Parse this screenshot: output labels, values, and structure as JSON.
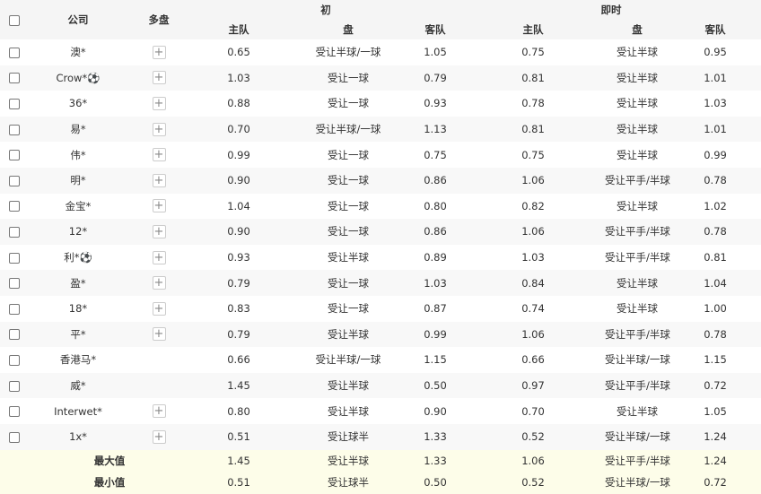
{
  "header": {
    "company": "公司",
    "multi": "多盘",
    "initial": "初",
    "live": "即时",
    "home": "主队",
    "line": "盘",
    "away": "客队"
  },
  "rows": [
    {
      "company": "澳*",
      "multi": true,
      "ih": "0.65",
      "il": "受让半球/一球",
      "ia": "1.05",
      "lh": "0.75",
      "ll": "受让半球",
      "la": "0.95"
    },
    {
      "company": "Crow*⚽",
      "multi": true,
      "ih": "1.03",
      "il": "受让一球",
      "ia": "0.79",
      "lh": "0.81",
      "ll": "受让半球",
      "la": "1.01"
    },
    {
      "company": "36*",
      "multi": true,
      "ih": "0.88",
      "il": "受让一球",
      "ia": "0.93",
      "lh": "0.78",
      "ll": "受让半球",
      "la": "1.03"
    },
    {
      "company": "易*",
      "multi": true,
      "ih": "0.70",
      "il": "受让半球/一球",
      "ia": "1.13",
      "lh": "0.81",
      "ll": "受让半球",
      "la": "1.01"
    },
    {
      "company": "伟*",
      "multi": true,
      "ih": "0.99",
      "il": "受让一球",
      "ia": "0.75",
      "lh": "0.75",
      "ll": "受让半球",
      "la": "0.99"
    },
    {
      "company": "明*",
      "multi": true,
      "ih": "0.90",
      "il": "受让一球",
      "ia": "0.86",
      "lh": "1.06",
      "ll": "受让平手/半球",
      "la": "0.78"
    },
    {
      "company": "金宝*",
      "multi": true,
      "ih": "1.04",
      "il": "受让一球",
      "ia": "0.80",
      "lh": "0.82",
      "ll": "受让半球",
      "la": "1.02"
    },
    {
      "company": "12*",
      "multi": true,
      "ih": "0.90",
      "il": "受让一球",
      "ia": "0.86",
      "lh": "1.06",
      "ll": "受让平手/半球",
      "la": "0.78"
    },
    {
      "company": "利*⚽",
      "multi": true,
      "ih": "0.93",
      "il": "受让半球",
      "ia": "0.89",
      "lh": "1.03",
      "ll": "受让平手/半球",
      "la": "0.81"
    },
    {
      "company": "盈*",
      "multi": true,
      "ih": "0.79",
      "il": "受让一球",
      "ia": "1.03",
      "lh": "0.84",
      "ll": "受让半球",
      "la": "1.04"
    },
    {
      "company": "18*",
      "multi": true,
      "ih": "0.83",
      "il": "受让一球",
      "ia": "0.87",
      "lh": "0.74",
      "ll": "受让半球",
      "la": "1.00"
    },
    {
      "company": "平*",
      "multi": true,
      "ih": "0.79",
      "il": "受让半球",
      "ia": "0.99",
      "lh": "1.06",
      "ll": "受让平手/半球",
      "la": "0.78"
    },
    {
      "company": "香港马*",
      "multi": false,
      "ih": "0.66",
      "il": "受让半球/一球",
      "ia": "1.15",
      "lh": "0.66",
      "ll": "受让半球/一球",
      "la": "1.15"
    },
    {
      "company": "威*",
      "multi": false,
      "ih": "1.45",
      "il": "受让半球",
      "ia": "0.50",
      "lh": "0.97",
      "ll": "受让平手/半球",
      "la": "0.72"
    },
    {
      "company": "Interwet*",
      "multi": true,
      "ih": "0.80",
      "il": "受让半球",
      "ia": "0.90",
      "lh": "0.70",
      "ll": "受让半球",
      "la": "1.05"
    },
    {
      "company": "1x*",
      "multi": true,
      "ih": "0.51",
      "il": "受让球半",
      "ia": "1.33",
      "lh": "0.52",
      "ll": "受让半球/一球",
      "la": "1.24"
    }
  ],
  "summary": [
    {
      "label": "最大值",
      "ih": "1.45",
      "il": "受让半球",
      "ia": "1.33",
      "lh": "1.06",
      "ll": "受让平手/半球",
      "la": "1.24"
    },
    {
      "label": "最小值",
      "ih": "0.51",
      "il": "受让球半",
      "ia": "0.50",
      "lh": "0.52",
      "ll": "受让半球/一球",
      "la": "0.72"
    }
  ],
  "icons": {
    "multi": "plus-icon",
    "checkbox": "checkbox-icon"
  }
}
